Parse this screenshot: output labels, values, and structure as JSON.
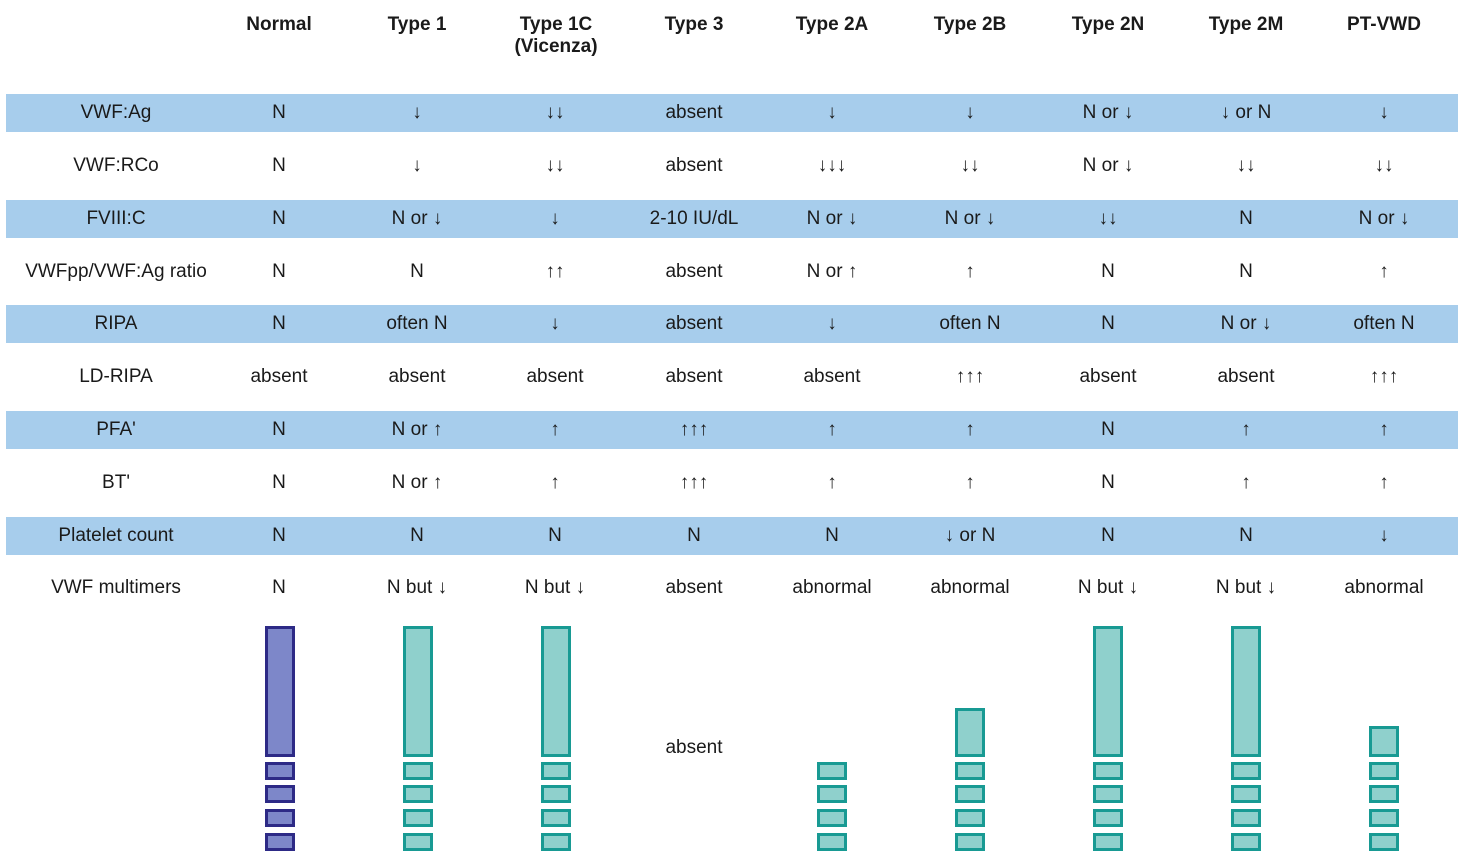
{
  "columns": [
    "Normal",
    "Type 1",
    "Type 1C (Vicenza)",
    "Type 3",
    "Type 2A",
    "Type 2B",
    "Type 2N",
    "Type 2M",
    "PT-VWD"
  ],
  "rows": [
    {
      "label": "VWF:Ag",
      "shaded": true,
      "values": [
        "N",
        "↓",
        "↓↓",
        "absent",
        "↓",
        "↓",
        "N or ↓",
        "↓ or N",
        "↓"
      ]
    },
    {
      "label": "VWF:RCo",
      "shaded": false,
      "values": [
        "N",
        "↓",
        "↓↓",
        "absent",
        "↓↓↓",
        "↓↓",
        "N or ↓",
        "↓↓",
        "↓↓"
      ]
    },
    {
      "label": "FVIII:C",
      "shaded": true,
      "values": [
        "N",
        "N or ↓",
        "↓",
        "2-10 IU/dL",
        "N or ↓",
        "N or ↓",
        "↓↓",
        "N",
        "N or ↓"
      ]
    },
    {
      "label": "VWFpp/VWF:Ag ratio",
      "shaded": false,
      "values": [
        "N",
        "N",
        "↑↑",
        "absent",
        "N or ↑",
        "↑",
        "N",
        "N",
        "↑"
      ]
    },
    {
      "label": "RIPA",
      "shaded": true,
      "values": [
        "N",
        "often N",
        "↓",
        "absent",
        "↓",
        "often N",
        "N",
        "N or ↓",
        "often N"
      ]
    },
    {
      "label": "LD-RIPA",
      "shaded": false,
      "values": [
        "absent",
        "absent",
        "absent",
        "absent",
        "absent",
        "↑↑↑",
        "absent",
        "absent",
        "↑↑↑"
      ]
    },
    {
      "label": "PFA'",
      "shaded": true,
      "values": [
        "N",
        "N or ↑",
        "↑",
        "↑↑↑",
        "↑",
        "↑",
        "N",
        "↑",
        "↑"
      ]
    },
    {
      "label": "BT'",
      "shaded": false,
      "values": [
        "N",
        "N or ↑",
        "↑",
        "↑↑↑",
        "↑",
        "↑",
        "N",
        "↑",
        "↑"
      ]
    },
    {
      "label": "Platelet count",
      "shaded": true,
      "values": [
        "N",
        "N",
        "N",
        "N",
        "N",
        "↓ or N",
        "N",
        "N",
        "↓"
      ]
    },
    {
      "label": "VWF multimers",
      "shaded": false,
      "values": [
        "N",
        "N but ↓",
        "N but ↓",
        "absent",
        "abnormal",
        "abnormal",
        "N but ↓",
        "N but ↓",
        "abnormal"
      ]
    }
  ],
  "multimers": {
    "absent_label": "absent",
    "columns": [
      {
        "style": "normal",
        "large_band": "full"
      },
      {
        "style": "vwd",
        "large_band": "full"
      },
      {
        "style": "vwd",
        "large_band": "full"
      },
      {
        "style": "absent",
        "large_band": "none"
      },
      {
        "style": "vwd",
        "large_band": "none"
      },
      {
        "style": "vwd",
        "large_band": "medium"
      },
      {
        "style": "vwd",
        "large_band": "full"
      },
      {
        "style": "vwd",
        "large_band": "full"
      },
      {
        "style": "vwd",
        "large_band": "small"
      }
    ]
  },
  "colors": {
    "row_shade": "#a7cdec",
    "normal_fill": "#7d87c9",
    "normal_border": "#2d2a86",
    "vwd_fill": "#8fd0cc",
    "vwd_border": "#189a93"
  }
}
